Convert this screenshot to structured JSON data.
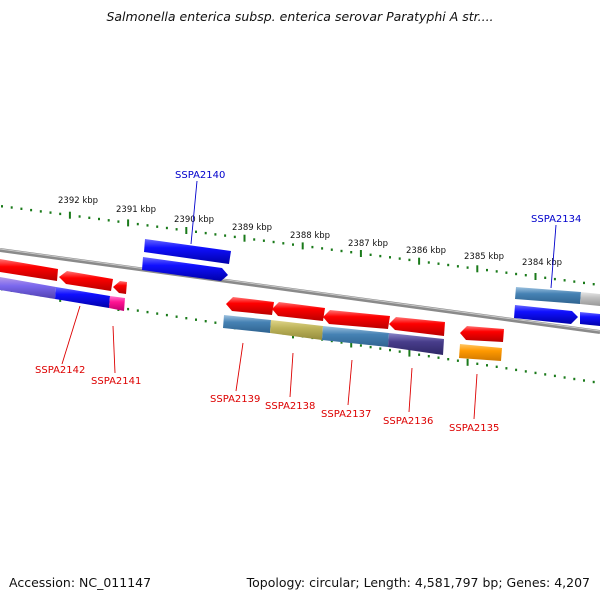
{
  "title": "Salmonella enterica subsp. enterica serovar Paratyphi A str....",
  "footer": {
    "accession": "Accession: NC_011147",
    "summary": "Topology: circular; Length: 4,581,797 bp; Genes: 4,207"
  },
  "colors": {
    "forward_label": "#0000cc",
    "reverse_label": "#dd0000",
    "backbone": "#808080",
    "tick": "#1a7a1a"
  },
  "kbp_labels": [
    "2392 kbp",
    "2391 kbp",
    "2390 kbp",
    "2389 kbp",
    "2388 kbp",
    "2387 kbp",
    "2386 kbp",
    "2385 kbp",
    "2384 kbp"
  ],
  "gene_labels": {
    "top": [
      "SSPA2140",
      "SSPA2134"
    ],
    "bottom": [
      "SSPA2142",
      "SSPA2141",
      "SSPA2139",
      "SSPA2138",
      "SSPA2137",
      "SSPA2136",
      "SSPA2135"
    ]
  }
}
